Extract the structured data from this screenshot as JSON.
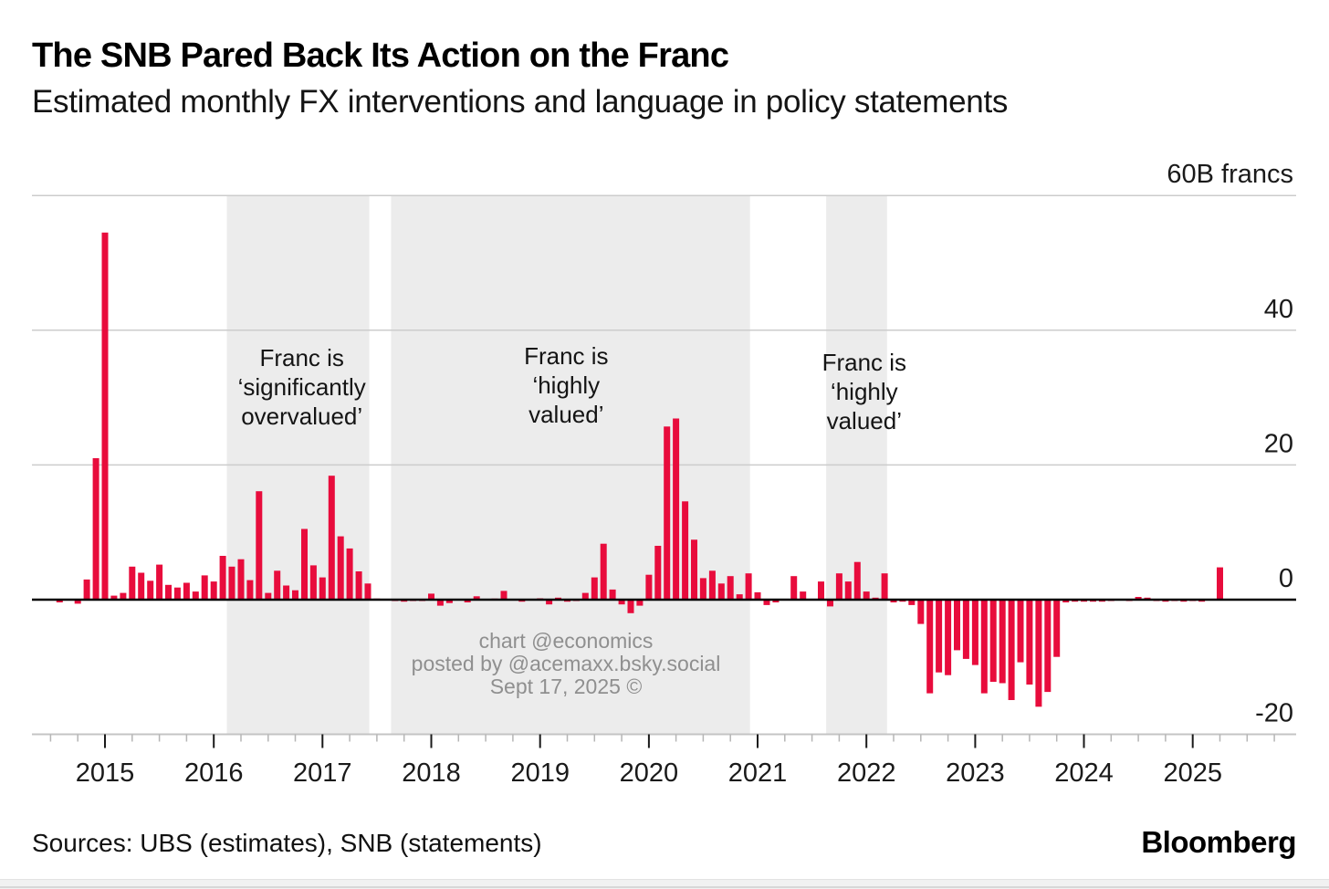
{
  "header": {
    "title": "The SNB Pared Back Its Action on the Franc",
    "subtitle": "Estimated monthly FX interventions and language in policy statements"
  },
  "footer": {
    "sources": "Sources: UBS (estimates), SNB (statements)",
    "brand": "Bloomberg"
  },
  "watermark": {
    "lines": [
      "chart @economics",
      "posted by @acemaxx.bsky.social",
      "Sept 17, 2025 ©"
    ]
  },
  "colors": {
    "bar": "#e80c3c",
    "shade": "#ececec",
    "grid": "#cccccc",
    "axis": "#c4c4c4",
    "zero_line": "#000000",
    "minor_tick": "#b5b5b5",
    "major_tick": "#1a1a1a",
    "label_text": "#1a1a1a",
    "watermark": "#8f8f8f"
  },
  "chart_data": {
    "type": "bar",
    "title": "The SNB Pared Back Its Action on the Franc",
    "subtitle": "Estimated monthly FX interventions and language in policy statements",
    "unit_label": "60B francs",
    "ylabel": "francs (billions)",
    "ylim": [
      -20,
      60
    ],
    "grid": "horizontal gridlines on, labels at right",
    "legend_position": "none",
    "bar_color": "#e80c3c",
    "yticks": [
      {
        "value": 60,
        "label": "60B francs"
      },
      {
        "value": 40,
        "label": "40"
      },
      {
        "value": 20,
        "label": "20"
      },
      {
        "value": 0,
        "label": "0"
      },
      {
        "value": -20,
        "label": "-20"
      }
    ],
    "x_year_labels": [
      "2015",
      "2016",
      "2017",
      "2018",
      "2019",
      "2020",
      "2021",
      "2022",
      "2023",
      "2024",
      "2025"
    ],
    "x_range_years": [
      2014.33,
      2025.95
    ],
    "shaded_regions": [
      {
        "label_lines": [
          "Franc is",
          "‘significantly",
          "overvalued’"
        ],
        "start_year": 2016.12,
        "end_year": 2017.43,
        "label_center_year": 2016.81
      },
      {
        "label_lines": [
          "Franc is",
          "‘highly",
          "valued’"
        ],
        "start_year": 2017.63,
        "end_year": 2020.93,
        "label_center_year": 2019.24
      },
      {
        "label_lines": [
          "Franc is",
          "‘highly",
          "valued’"
        ],
        "start_year": 2021.63,
        "end_year": 2022.19,
        "label_center_year": 2021.98
      }
    ],
    "series": [
      {
        "name": "Estimated monthly FX interventions (B francs)",
        "points": [
          [
            "2014-08",
            -0.4
          ],
          [
            "2014-09",
            0
          ],
          [
            "2014-10",
            -0.6
          ],
          [
            "2014-11",
            3.0
          ],
          [
            "2014-12",
            21.0
          ],
          [
            "2015-01",
            54.5
          ],
          [
            "2015-02",
            0.6
          ],
          [
            "2015-03",
            1.0
          ],
          [
            "2015-04",
            4.9
          ],
          [
            "2015-05",
            4.0
          ],
          [
            "2015-06",
            2.8
          ],
          [
            "2015-07",
            5.2
          ],
          [
            "2015-08",
            2.2
          ],
          [
            "2015-09",
            1.8
          ],
          [
            "2015-10",
            2.5
          ],
          [
            "2015-11",
            1.2
          ],
          [
            "2015-12",
            3.6
          ],
          [
            "2016-01",
            2.7
          ],
          [
            "2016-02",
            6.5
          ],
          [
            "2016-03",
            4.9
          ],
          [
            "2016-04",
            6.0
          ],
          [
            "2016-05",
            2.9
          ],
          [
            "2016-06",
            16.1
          ],
          [
            "2016-07",
            1.0
          ],
          [
            "2016-08",
            4.3
          ],
          [
            "2016-09",
            2.1
          ],
          [
            "2016-10",
            1.4
          ],
          [
            "2016-11",
            10.5
          ],
          [
            "2016-12",
            5.1
          ],
          [
            "2017-01",
            3.3
          ],
          [
            "2017-02",
            18.4
          ],
          [
            "2017-03",
            9.4
          ],
          [
            "2017-04",
            7.6
          ],
          [
            "2017-05",
            4.2
          ],
          [
            "2017-06",
            2.4
          ],
          [
            "2017-07",
            0.1
          ],
          [
            "2017-08",
            0
          ],
          [
            "2017-09",
            -0.2
          ],
          [
            "2017-10",
            -0.3
          ],
          [
            "2017-11",
            -0.2
          ],
          [
            "2017-12",
            -0.2
          ],
          [
            "2018-01",
            0.9
          ],
          [
            "2018-02",
            -0.9
          ],
          [
            "2018-03",
            -0.5
          ],
          [
            "2018-04",
            0
          ],
          [
            "2018-05",
            -0.4
          ],
          [
            "2018-06",
            0.5
          ],
          [
            "2018-07",
            0
          ],
          [
            "2018-08",
            0.1
          ],
          [
            "2018-09",
            1.3
          ],
          [
            "2018-10",
            0
          ],
          [
            "2018-11",
            -0.3
          ],
          [
            "2018-12",
            0
          ],
          [
            "2019-01",
            0.2
          ],
          [
            "2019-02",
            -0.7
          ],
          [
            "2019-03",
            0.3
          ],
          [
            "2019-04",
            -0.3
          ],
          [
            "2019-05",
            -0.2
          ],
          [
            "2019-06",
            1.0
          ],
          [
            "2019-07",
            3.3
          ],
          [
            "2019-08",
            8.3
          ],
          [
            "2019-09",
            1.5
          ],
          [
            "2019-10",
            -0.7
          ],
          [
            "2019-11",
            -2.0
          ],
          [
            "2019-12",
            -0.9
          ],
          [
            "2020-01",
            3.7
          ],
          [
            "2020-02",
            8.0
          ],
          [
            "2020-03",
            25.7
          ],
          [
            "2020-04",
            26.9
          ],
          [
            "2020-05",
            14.6
          ],
          [
            "2020-06",
            8.9
          ],
          [
            "2020-07",
            3.2
          ],
          [
            "2020-08",
            4.3
          ],
          [
            "2020-09",
            2.4
          ],
          [
            "2020-10",
            3.5
          ],
          [
            "2020-11",
            0.8
          ],
          [
            "2020-12",
            3.9
          ],
          [
            "2021-01",
            1.1
          ],
          [
            "2021-02",
            -0.8
          ],
          [
            "2021-03",
            -0.4
          ],
          [
            "2021-04",
            0
          ],
          [
            "2021-05",
            3.5
          ],
          [
            "2021-06",
            1.2
          ],
          [
            "2021-07",
            0
          ],
          [
            "2021-08",
            2.7
          ],
          [
            "2021-09",
            -1.0
          ],
          [
            "2021-10",
            3.9
          ],
          [
            "2021-11",
            2.7
          ],
          [
            "2021-12",
            5.6
          ],
          [
            "2022-01",
            1.2
          ],
          [
            "2022-02",
            0.3
          ],
          [
            "2022-03",
            3.9
          ],
          [
            "2022-04",
            -0.4
          ],
          [
            "2022-05",
            -0.3
          ],
          [
            "2022-06",
            -0.8
          ],
          [
            "2022-07",
            -3.6
          ],
          [
            "2022-08",
            -13.9
          ],
          [
            "2022-09",
            -10.8
          ],
          [
            "2022-10",
            -11.2
          ],
          [
            "2022-11",
            -7.5
          ],
          [
            "2022-12",
            -8.8
          ],
          [
            "2023-01",
            -9.7
          ],
          [
            "2023-02",
            -13.9
          ],
          [
            "2023-03",
            -12.2
          ],
          [
            "2023-04",
            -12.4
          ],
          [
            "2023-05",
            -14.9
          ],
          [
            "2023-06",
            -9.3
          ],
          [
            "2023-07",
            -12.6
          ],
          [
            "2023-08",
            -15.9
          ],
          [
            "2023-09",
            -13.7
          ],
          [
            "2023-10",
            -8.5
          ],
          [
            "2023-11",
            -0.4
          ],
          [
            "2023-12",
            -0.3
          ],
          [
            "2024-01",
            -0.3
          ],
          [
            "2024-02",
            -0.3
          ],
          [
            "2024-03",
            -0.3
          ],
          [
            "2024-04",
            -0.2
          ],
          [
            "2024-05",
            0
          ],
          [
            "2024-06",
            -0.2
          ],
          [
            "2024-07",
            0.4
          ],
          [
            "2024-08",
            0.3
          ],
          [
            "2024-09",
            -0.2
          ],
          [
            "2024-10",
            -0.3
          ],
          [
            "2024-11",
            -0.2
          ],
          [
            "2024-12",
            -0.3
          ],
          [
            "2025-01",
            -0.2
          ],
          [
            "2025-02",
            -0.3
          ],
          [
            "2025-03",
            0
          ],
          [
            "2025-04",
            4.8
          ]
        ]
      }
    ]
  }
}
